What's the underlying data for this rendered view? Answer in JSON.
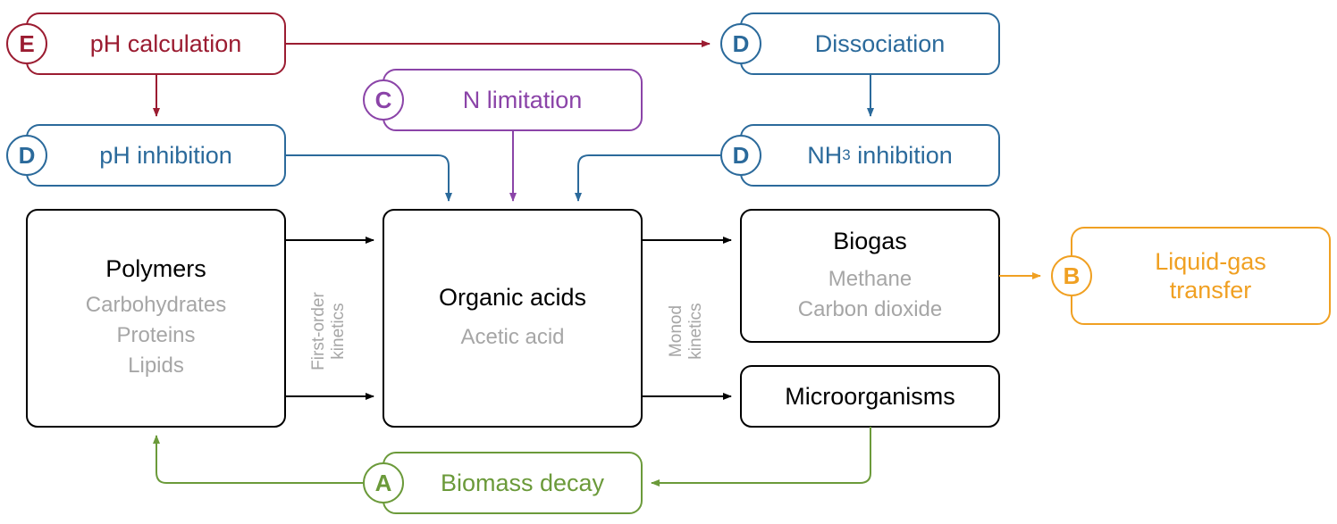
{
  "colors": {
    "red": "#9b1c31",
    "blue": "#2b6a9b",
    "purple": "#8b44a8",
    "orange": "#f0a022",
    "green": "#6b9a3a",
    "black": "#000000",
    "grey_text": "#a6a6a6"
  },
  "boxes": {
    "ph_calculation": {
      "letter": "E",
      "label": "pH calculation"
    },
    "dissociation": {
      "letter": "D",
      "label": "Dissociation"
    },
    "n_limitation": {
      "letter": "C",
      "label": "N limitation"
    },
    "ph_inhibition": {
      "letter": "D",
      "label": "pH inhibition"
    },
    "nh3_inhibition": {
      "letter": "D",
      "label_prefix": "NH",
      "label_sub": "3",
      "label_suffix": " inhibition"
    },
    "polymers": {
      "title": "Polymers",
      "items": [
        "Carbohydrates",
        "Proteins",
        "Lipids"
      ]
    },
    "organic_acids": {
      "title": "Organic acids",
      "items": [
        "Acetic acid"
      ]
    },
    "biogas": {
      "title": "Biogas",
      "items": [
        "Methane",
        "Carbon dioxide"
      ]
    },
    "microorganisms": {
      "title": "Microorganisms"
    },
    "liquid_gas": {
      "letter": "B",
      "line1": "Liquid-gas",
      "line2": "transfer"
    },
    "biomass_decay": {
      "letter": "A",
      "label": "Biomass decay"
    }
  },
  "kinetics": {
    "first_order": {
      "line1": "First-order",
      "line2": "kinetics"
    },
    "monod": {
      "line1": "Monod",
      "line2": "kinetics"
    }
  }
}
